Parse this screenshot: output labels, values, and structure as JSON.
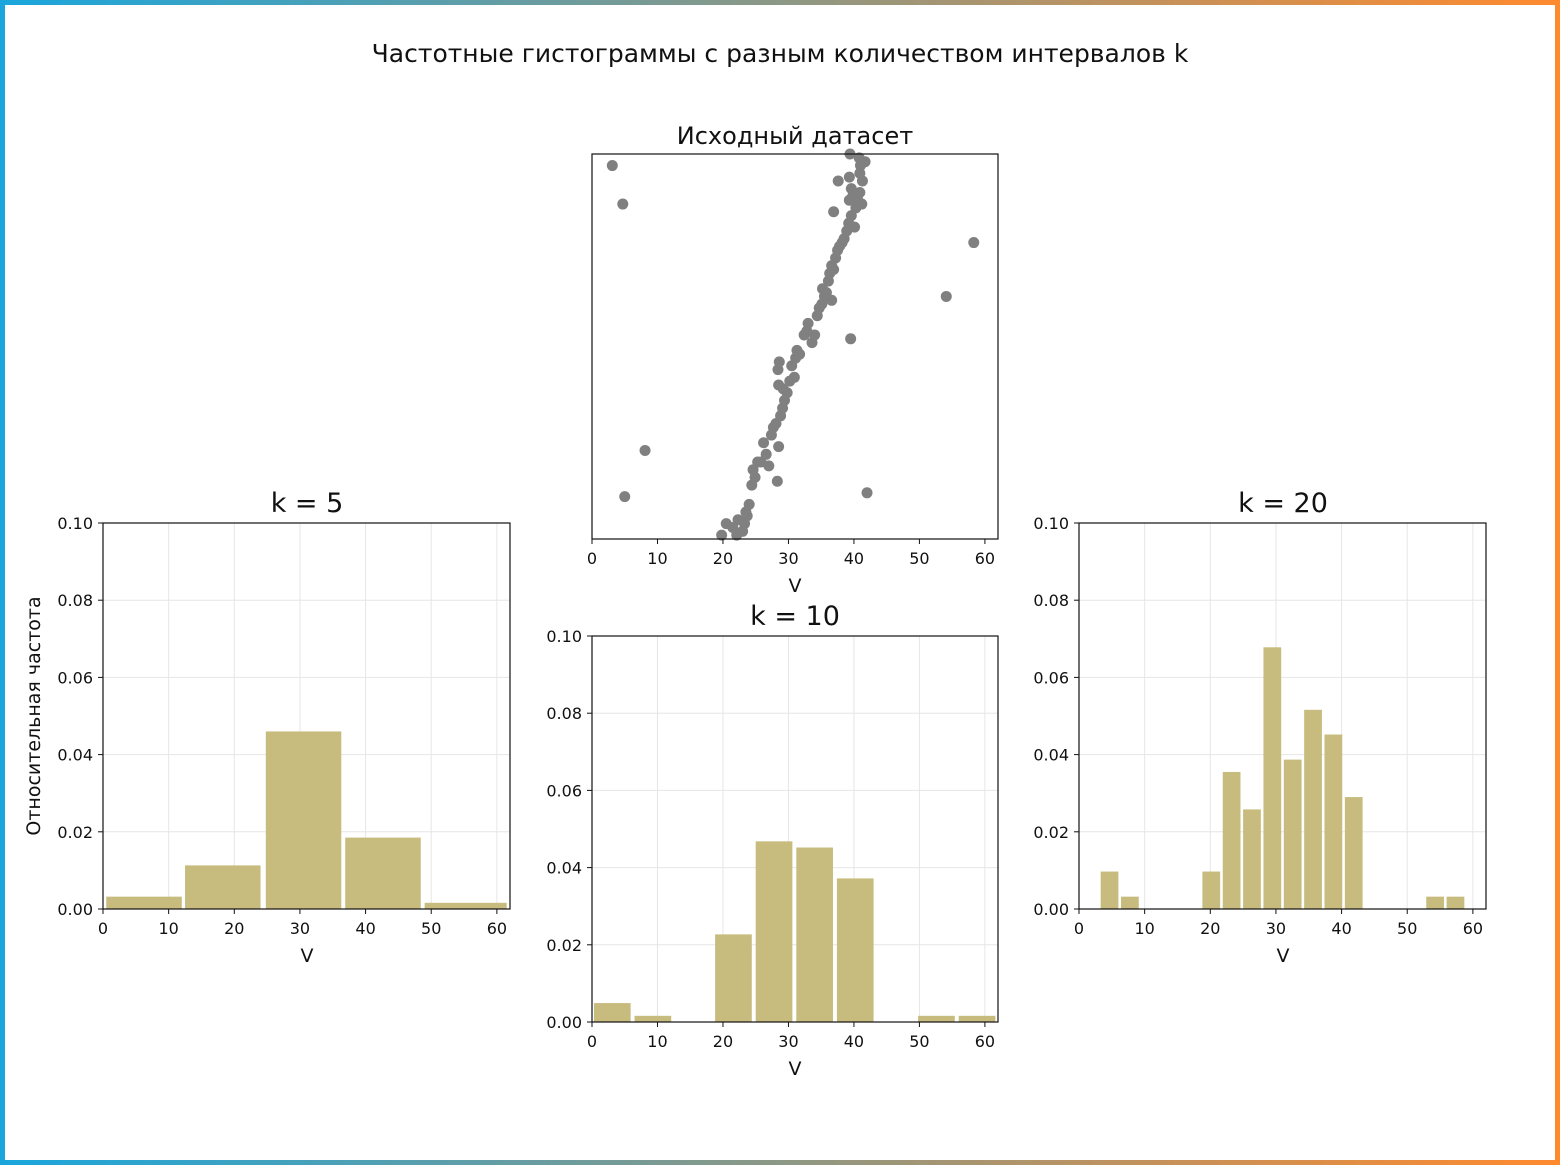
{
  "figure": {
    "title": "Частотные гистограммы с разным количеством интервалов k",
    "border_gradient": [
      "#1aa6dc",
      "#ff8a2e"
    ]
  },
  "chart_data": [
    {
      "id": "scatter",
      "type": "scatter",
      "title": "Исходный датасет",
      "xlabel": "V",
      "ylabel": "",
      "xlim": [
        0,
        62
      ],
      "ylim": [
        0,
        1
      ],
      "xticks": [
        0,
        10,
        20,
        30,
        40,
        50,
        60
      ],
      "yticks": [],
      "grid": false,
      "color": "#808080",
      "points": [
        [
          3.1,
          0.97
        ],
        [
          4.7,
          0.87
        ],
        [
          8.1,
          0.23
        ],
        [
          5.0,
          0.11
        ],
        [
          54.1,
          0.63
        ],
        [
          58.3,
          0.77
        ],
        [
          39.5,
          0.52
        ],
        [
          42.0,
          0.12
        ],
        [
          19.8,
          0.01
        ],
        [
          20.5,
          0.04
        ],
        [
          21.5,
          0.03
        ],
        [
          22.1,
          0.01
        ],
        [
          22.3,
          0.05
        ],
        [
          23.0,
          0.02
        ],
        [
          23.3,
          0.04
        ],
        [
          23.5,
          0.07
        ],
        [
          23.7,
          0.06
        ],
        [
          24.0,
          0.09
        ],
        [
          24.4,
          0.14
        ],
        [
          24.6,
          0.18
        ],
        [
          24.9,
          0.16
        ],
        [
          25.3,
          0.2
        ],
        [
          25.8,
          0.2
        ],
        [
          26.2,
          0.25
        ],
        [
          26.6,
          0.22
        ],
        [
          27.0,
          0.19
        ],
        [
          27.4,
          0.27
        ],
        [
          27.7,
          0.29
        ],
        [
          28.1,
          0.3
        ],
        [
          28.3,
          0.15
        ],
        [
          28.5,
          0.24
        ],
        [
          28.8,
          0.32
        ],
        [
          29.1,
          0.34
        ],
        [
          29.4,
          0.36
        ],
        [
          28.4,
          0.44
        ],
        [
          28.6,
          0.46
        ],
        [
          28.5,
          0.4
        ],
        [
          29.2,
          0.39
        ],
        [
          29.8,
          0.38
        ],
        [
          30.2,
          0.41
        ],
        [
          30.5,
          0.45
        ],
        [
          30.9,
          0.42
        ],
        [
          31.1,
          0.47
        ],
        [
          31.3,
          0.49
        ],
        [
          31.7,
          0.48
        ],
        [
          32.4,
          0.53
        ],
        [
          32.8,
          0.54
        ],
        [
          33.0,
          0.56
        ],
        [
          33.6,
          0.51
        ],
        [
          34.0,
          0.53
        ],
        [
          34.4,
          0.58
        ],
        [
          34.7,
          0.6
        ],
        [
          35.1,
          0.61
        ],
        [
          35.5,
          0.63
        ],
        [
          35.2,
          0.65
        ],
        [
          35.8,
          0.64
        ],
        [
          36.1,
          0.67
        ],
        [
          36.3,
          0.69
        ],
        [
          36.6,
          0.71
        ],
        [
          36.9,
          0.7
        ],
        [
          37.2,
          0.73
        ],
        [
          37.5,
          0.75
        ],
        [
          36.6,
          0.62
        ],
        [
          36.9,
          0.85
        ],
        [
          37.8,
          0.76
        ],
        [
          38.2,
          0.77
        ],
        [
          38.5,
          0.78
        ],
        [
          38.9,
          0.8
        ],
        [
          39.2,
          0.82
        ],
        [
          39.6,
          0.84
        ],
        [
          40.1,
          0.81
        ],
        [
          39.3,
          0.88
        ],
        [
          39.8,
          0.89
        ],
        [
          40.3,
          0.86
        ],
        [
          40.6,
          0.88
        ],
        [
          40.9,
          0.9
        ],
        [
          41.2,
          0.87
        ],
        [
          41.3,
          0.93
        ],
        [
          40.9,
          0.95
        ],
        [
          37.6,
          0.93
        ],
        [
          39.3,
          0.94
        ],
        [
          39.6,
          0.91
        ],
        [
          40.8,
          0.99
        ],
        [
          41.7,
          0.98
        ],
        [
          39.4,
          1.0
        ],
        [
          41.0,
          0.97
        ]
      ]
    },
    {
      "id": "k5",
      "type": "bar",
      "title": "k = 5",
      "xlabel": "V",
      "ylabel": "Относительная частота",
      "xlim": [
        0,
        62
      ],
      "ylim": [
        0,
        0.1
      ],
      "xticks": [
        0,
        10,
        20,
        30,
        40,
        50,
        60
      ],
      "yticks": [
        "0.00",
        "0.02",
        "0.04",
        "0.06",
        "0.08",
        "0.10"
      ],
      "grid": true,
      "color": "#c7bb7d",
      "bins": [
        {
          "x0": 0.5,
          "x1": 12.0,
          "y": 0.0032
        },
        {
          "x0": 12.5,
          "x1": 24.0,
          "y": 0.0113
        },
        {
          "x0": 24.8,
          "x1": 36.3,
          "y": 0.046
        },
        {
          "x0": 36.9,
          "x1": 48.4,
          "y": 0.0185
        },
        {
          "x0": 49.0,
          "x1": 61.5,
          "y": 0.0016
        }
      ]
    },
    {
      "id": "k10",
      "type": "bar",
      "title": "k = 10",
      "xlabel": "V",
      "ylabel": "",
      "xlim": [
        0,
        62
      ],
      "ylim": [
        0,
        0.1
      ],
      "xticks": [
        0,
        10,
        20,
        30,
        40,
        50,
        60
      ],
      "yticks": [
        "0.00",
        "0.02",
        "0.04",
        "0.06",
        "0.08",
        "0.10"
      ],
      "grid": true,
      "color": "#c7bb7d",
      "bins": [
        {
          "x0": 0.3,
          "x1": 5.9,
          "y": 0.0049
        },
        {
          "x0": 6.5,
          "x1": 12.1,
          "y": 0.0016
        },
        {
          "x0": 18.8,
          "x1": 24.4,
          "y": 0.0227
        },
        {
          "x0": 25.0,
          "x1": 30.6,
          "y": 0.0468
        },
        {
          "x0": 31.2,
          "x1": 36.8,
          "y": 0.0452
        },
        {
          "x0": 37.4,
          "x1": 43.0,
          "y": 0.0372
        },
        {
          "x0": 49.8,
          "x1": 55.4,
          "y": 0.0016
        },
        {
          "x0": 56.0,
          "x1": 61.6,
          "y": 0.0016
        }
      ]
    },
    {
      "id": "k20",
      "type": "bar",
      "title": "k = 20",
      "xlabel": "V",
      "ylabel": "",
      "xlim": [
        0,
        62
      ],
      "ylim": [
        0,
        0.1
      ],
      "xticks": [
        0,
        10,
        20,
        30,
        40,
        50,
        60
      ],
      "yticks": [
        "0.00",
        "0.02",
        "0.04",
        "0.06",
        "0.08",
        "0.10"
      ],
      "grid": true,
      "color": "#c7bb7d",
      "bins": [
        {
          "x0": 3.3,
          "x1": 6.0,
          "y": 0.0097
        },
        {
          "x0": 6.4,
          "x1": 9.1,
          "y": 0.0032
        },
        {
          "x0": 18.8,
          "x1": 21.5,
          "y": 0.0097
        },
        {
          "x0": 21.9,
          "x1": 24.6,
          "y": 0.0355
        },
        {
          "x0": 25.0,
          "x1": 27.7,
          "y": 0.0258
        },
        {
          "x0": 28.1,
          "x1": 30.8,
          "y": 0.0678
        },
        {
          "x0": 31.2,
          "x1": 33.9,
          "y": 0.0387
        },
        {
          "x0": 34.3,
          "x1": 37.0,
          "y": 0.0516
        },
        {
          "x0": 37.4,
          "x1": 40.1,
          "y": 0.0452
        },
        {
          "x0": 40.5,
          "x1": 43.2,
          "y": 0.029
        },
        {
          "x0": 52.9,
          "x1": 55.6,
          "y": 0.0032
        },
        {
          "x0": 56.0,
          "x1": 58.7,
          "y": 0.0032
        }
      ]
    }
  ]
}
